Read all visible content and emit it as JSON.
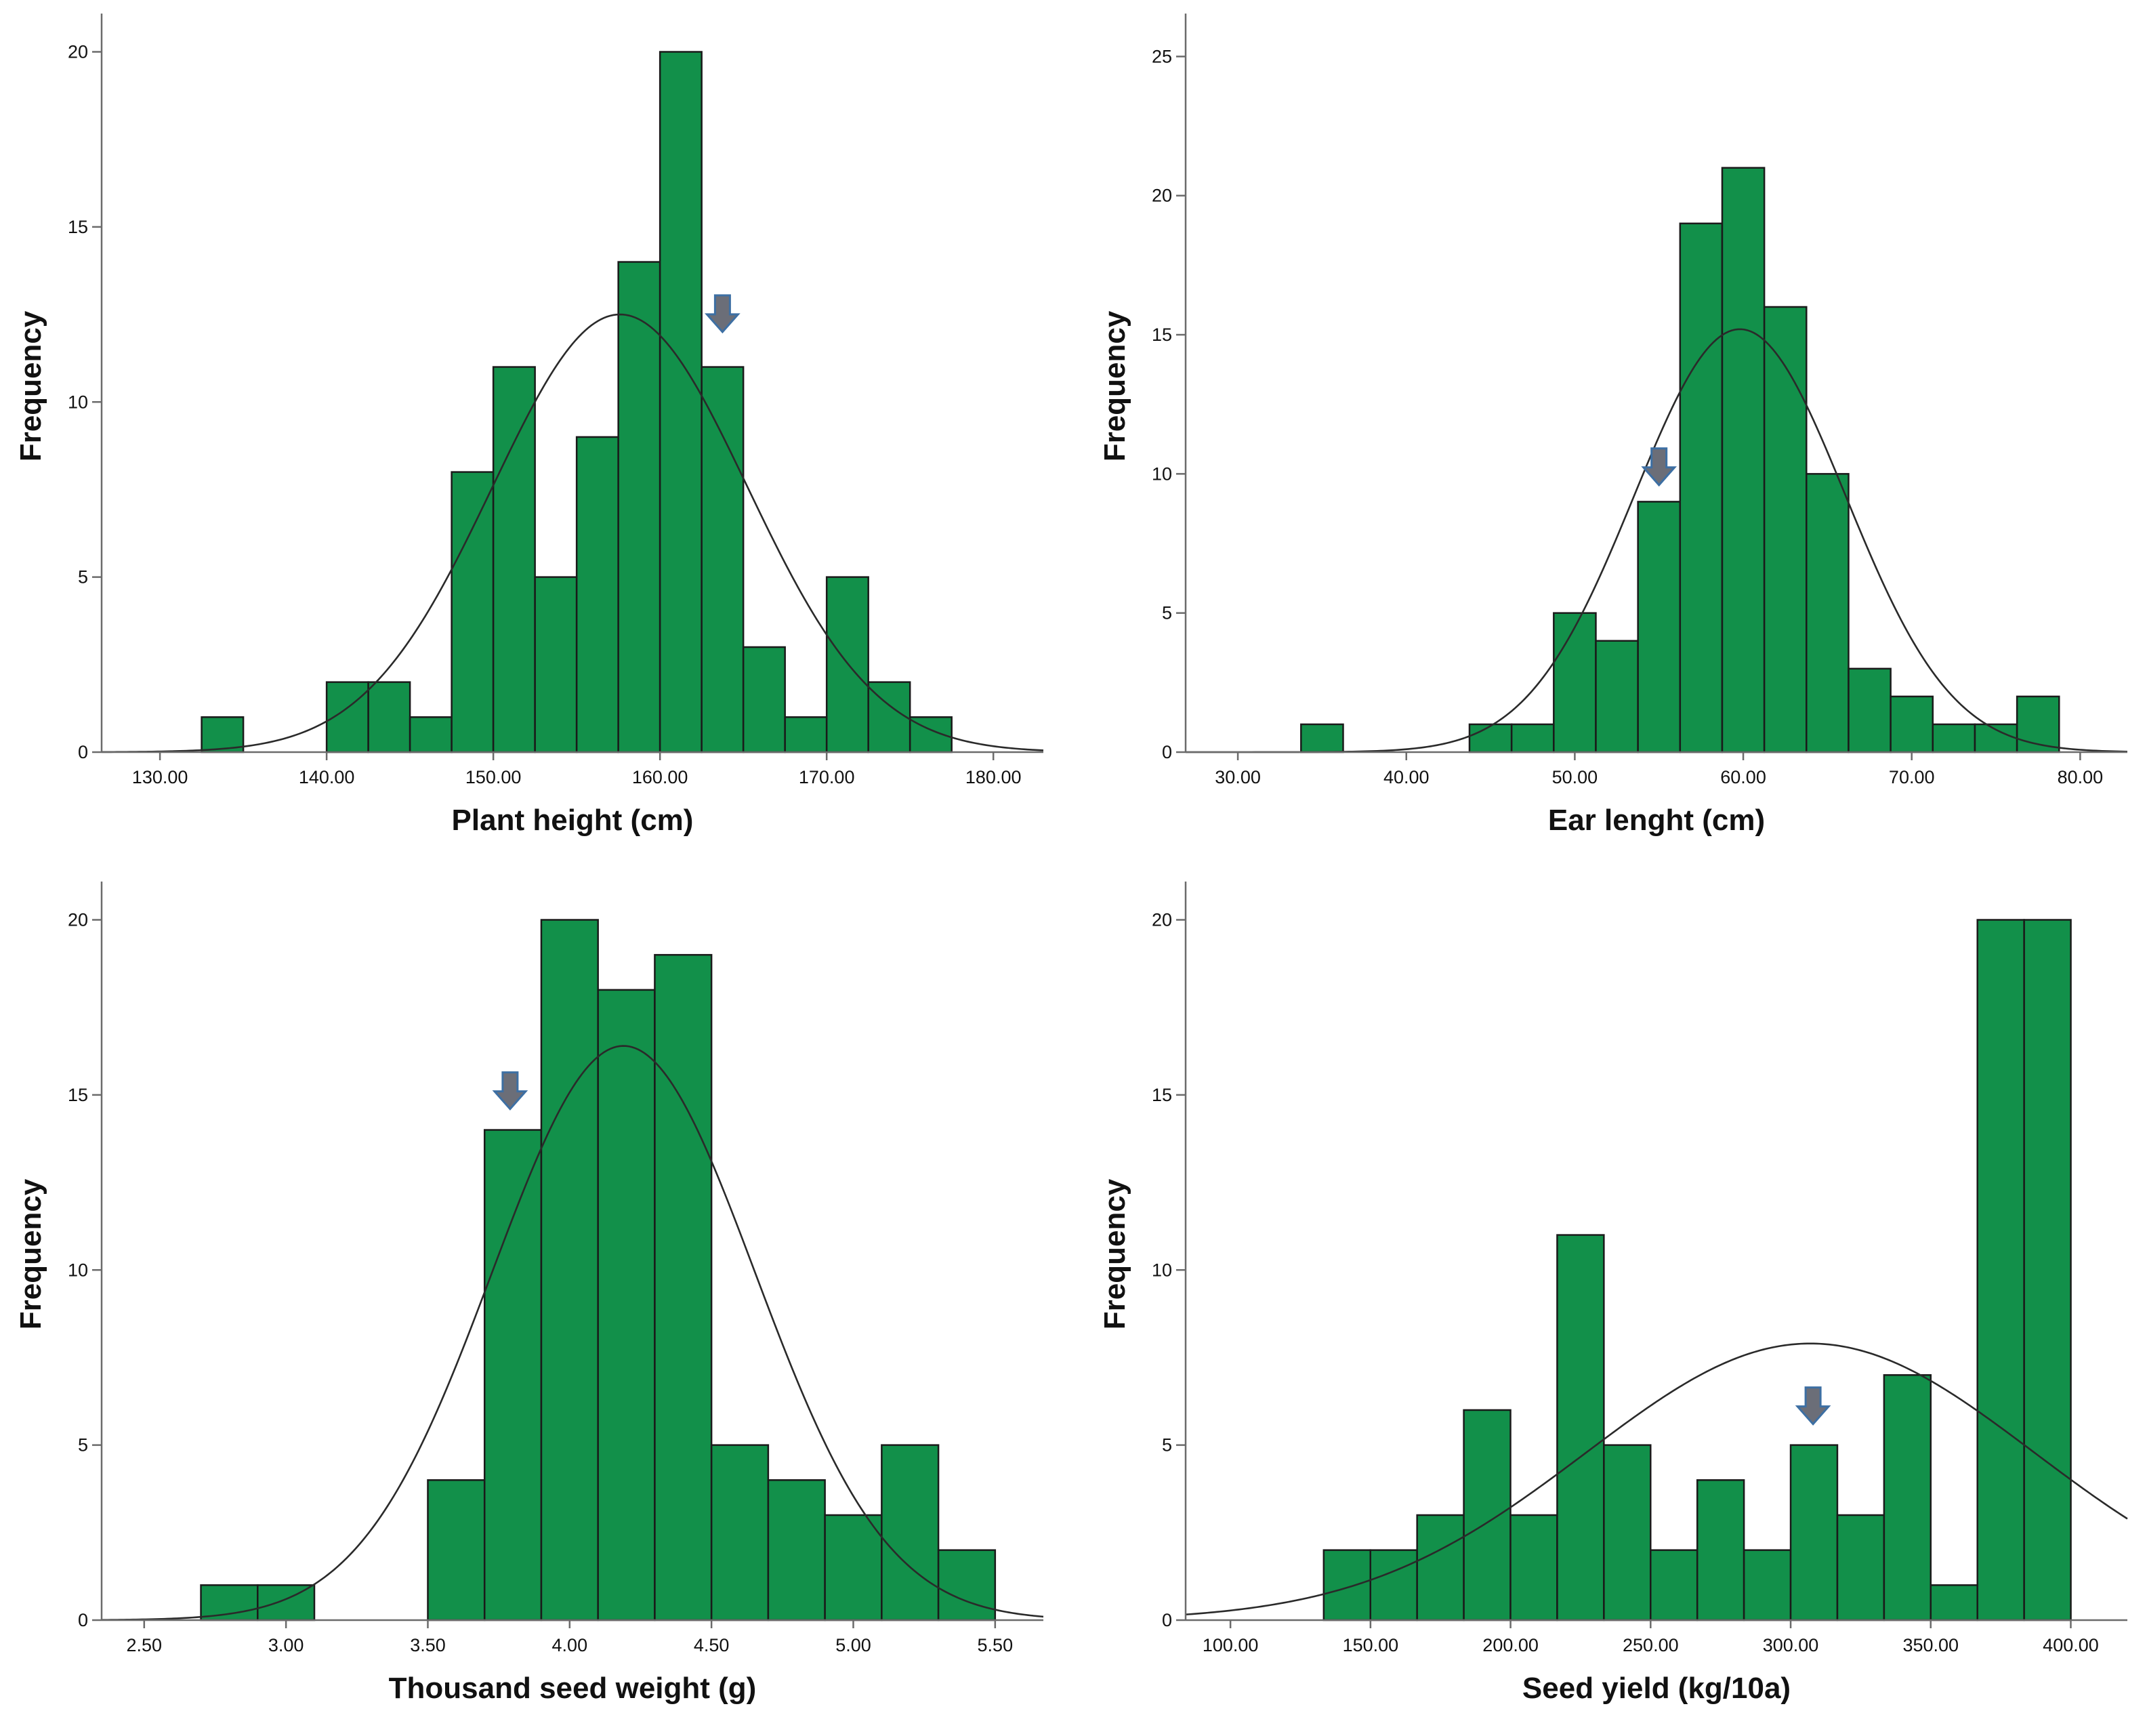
{
  "chart_data": [
    {
      "id": "plant-height",
      "type": "bar",
      "title": "",
      "xlabel": "Plant height (cm)",
      "ylabel": "Frequency",
      "xlim": [
        126.5,
        183.0
      ],
      "ylim": [
        0,
        20.9
      ],
      "xticks": [
        130,
        140,
        150,
        160,
        170,
        180
      ],
      "xtick_labels": [
        "130.00",
        "140.00",
        "150.00",
        "160.00",
        "170.00",
        "180.00"
      ],
      "yticks": [
        0,
        5,
        10,
        15,
        20
      ],
      "ytick_labels": [
        "0",
        "5",
        "10",
        "15",
        "20"
      ],
      "bin_start": 132.5,
      "bin_width": 2.5,
      "bins": [
        {
          "bin": "132.5-135.0",
          "count": 1
        },
        {
          "bin": "135.0-137.5",
          "count": 0
        },
        {
          "bin": "137.5-140.0",
          "count": 0
        },
        {
          "bin": "140.0-142.5",
          "count": 2
        },
        {
          "bin": "142.5-145.0",
          "count": 2
        },
        {
          "bin": "145.0-147.5",
          "count": 1
        },
        {
          "bin": "147.5-150.0",
          "count": 8
        },
        {
          "bin": "150.0-152.5",
          "count": 11
        },
        {
          "bin": "152.5-155.0",
          "count": 5
        },
        {
          "bin": "155.0-157.5",
          "count": 9
        },
        {
          "bin": "157.5-160.0",
          "count": 14
        },
        {
          "bin": "160.0-162.5",
          "count": 20
        },
        {
          "bin": "162.5-165.0",
          "count": 11
        },
        {
          "bin": "165.0-167.5",
          "count": 3
        },
        {
          "bin": "167.5-170.0",
          "count": 1
        },
        {
          "bin": "170.0-172.5",
          "count": 5
        },
        {
          "bin": "172.5-175.0",
          "count": 2
        },
        {
          "bin": "175.0-177.5",
          "count": 1
        }
      ],
      "normal_curve": {
        "mean": 157.6,
        "peak": 12.5
      },
      "arrow_marker": {
        "x": 163.75,
        "y": 12.0
      },
      "colors": {
        "bar": "#12904a",
        "marker": "#6b6e78"
      }
    },
    {
      "id": "ear-length",
      "type": "bar",
      "title": "",
      "xlabel": "Ear lenght (cm)",
      "ylabel": "Frequency",
      "xlim": [
        26.9,
        82.8
      ],
      "ylim": [
        0,
        26.3
      ],
      "xticks": [
        30,
        40,
        50,
        60,
        70,
        80
      ],
      "xtick_labels": [
        "30.00",
        "40.00",
        "50.00",
        "60.00",
        "70.00",
        "80.00"
      ],
      "yticks": [
        0,
        5,
        10,
        15,
        20,
        25
      ],
      "ytick_labels": [
        "0",
        "5",
        "10",
        "15",
        "20",
        "25"
      ],
      "bin_start": 33.75,
      "bin_width": 2.5,
      "bins": [
        {
          "bin": "33.75-36.25",
          "count": 1
        },
        {
          "bin": "36.25-38.75",
          "count": 0
        },
        {
          "bin": "38.75-41.25",
          "count": 0
        },
        {
          "bin": "41.25-43.75",
          "count": 0
        },
        {
          "bin": "43.75-46.25",
          "count": 1
        },
        {
          "bin": "46.25-48.75",
          "count": 1
        },
        {
          "bin": "48.75-51.25",
          "count": 5
        },
        {
          "bin": "51.25-53.75",
          "count": 4
        },
        {
          "bin": "53.75-56.25",
          "count": 9
        },
        {
          "bin": "56.25-58.75",
          "count": 19
        },
        {
          "bin": "58.75-61.25",
          "count": 21
        },
        {
          "bin": "61.25-63.75",
          "count": 16
        },
        {
          "bin": "63.75-66.25",
          "count": 10
        },
        {
          "bin": "66.25-68.75",
          "count": 3
        },
        {
          "bin": "68.75-71.25",
          "count": 2
        },
        {
          "bin": "71.25-73.75",
          "count": 1
        },
        {
          "bin": "73.75-76.25",
          "count": 1
        },
        {
          "bin": "76.25-78.75",
          "count": 2
        }
      ],
      "normal_curve": {
        "mean": 59.8,
        "peak": 15.2
      },
      "arrow_marker": {
        "x": 55.0,
        "y": 9.6
      },
      "colors": {
        "bar": "#12904a",
        "marker": "#6b6e78"
      }
    },
    {
      "id": "thousand-seed-weight",
      "type": "bar",
      "title": "",
      "xlabel": "Thousand seed weight (g)",
      "ylabel": "Frequency",
      "xlim": [
        2.35,
        5.67
      ],
      "ylim": [
        0,
        20.9
      ],
      "xticks": [
        2.5,
        3.0,
        3.5,
        4.0,
        4.5,
        5.0,
        5.5
      ],
      "xtick_labels": [
        "2.50",
        "3.00",
        "3.50",
        "4.00",
        "4.50",
        "5.00",
        "5.50"
      ],
      "yticks": [
        0,
        5,
        10,
        15,
        20
      ],
      "ytick_labels": [
        "0",
        "5",
        "10",
        "15",
        "20"
      ],
      "bin_start": 2.7,
      "bin_width": 0.2,
      "bins": [
        {
          "bin": "2.7-2.9",
          "count": 1
        },
        {
          "bin": "2.9-3.1",
          "count": 1
        },
        {
          "bin": "3.1-3.3",
          "count": 0
        },
        {
          "bin": "3.3-3.5",
          "count": 0
        },
        {
          "bin": "3.5-3.7",
          "count": 4
        },
        {
          "bin": "3.7-3.9",
          "count": 14
        },
        {
          "bin": "3.9-4.1",
          "count": 20
        },
        {
          "bin": "4.1-4.3",
          "count": 18
        },
        {
          "bin": "4.3-4.5",
          "count": 19
        },
        {
          "bin": "4.5-4.7",
          "count": 5
        },
        {
          "bin": "4.7-4.9",
          "count": 4
        },
        {
          "bin": "4.9-5.1",
          "count": 3
        },
        {
          "bin": "5.1-5.3",
          "count": 5
        },
        {
          "bin": "5.3-5.5",
          "count": 2
        }
      ],
      "normal_curve": {
        "mean": 4.19,
        "peak": 16.4
      },
      "arrow_marker": {
        "x": 3.79,
        "y": 14.6
      },
      "colors": {
        "bar": "#12904a",
        "marker": "#6b6e78"
      }
    },
    {
      "id": "seed-yield",
      "type": "bar",
      "title": "",
      "xlabel": "Seed yield (kg/10a)",
      "ylabel": "Frequency",
      "xlim": [
        84.0,
        420.2
      ],
      "ylim": [
        0,
        20.9
      ],
      "xticks": [
        100,
        150,
        200,
        250,
        300,
        350,
        400
      ],
      "xtick_labels": [
        "100.00",
        "150.00",
        "200.00",
        "250.00",
        "300.00",
        "350.00",
        "400.00"
      ],
      "yticks": [
        0,
        5,
        10,
        15,
        20
      ],
      "ytick_labels": [
        "0",
        "5",
        "10",
        "15",
        "20"
      ],
      "bin_start": 133.3,
      "bin_width": 16.67,
      "bins": [
        {
          "bin": "133.3-150.0",
          "count": 2
        },
        {
          "bin": "150.0-166.7",
          "count": 2
        },
        {
          "bin": "166.7-183.3",
          "count": 3
        },
        {
          "bin": "183.3-200.0",
          "count": 6
        },
        {
          "bin": "200.0-216.7",
          "count": 3
        },
        {
          "bin": "216.7-233.3",
          "count": 11
        },
        {
          "bin": "233.3-250.0",
          "count": 5
        },
        {
          "bin": "250.0-266.7",
          "count": 2
        },
        {
          "bin": "266.7-283.3",
          "count": 4
        },
        {
          "bin": "283.3-300.0",
          "count": 2
        },
        {
          "bin": "300.0-316.7",
          "count": 5
        },
        {
          "bin": "316.7-333.3",
          "count": 3
        },
        {
          "bin": "333.3-350.0",
          "count": 7
        },
        {
          "bin": "350.0-366.7",
          "count": 1
        },
        {
          "bin": "366.7-383.3",
          "count": 20
        },
        {
          "bin": "383.3-400.0",
          "count": 20
        }
      ],
      "normal_curve": {
        "mean": 307.0,
        "peak": 7.9
      },
      "arrow_marker": {
        "x": 308.0,
        "y": 5.6
      },
      "colors": {
        "bar": "#12904a",
        "marker": "#6b6e78"
      }
    }
  ]
}
